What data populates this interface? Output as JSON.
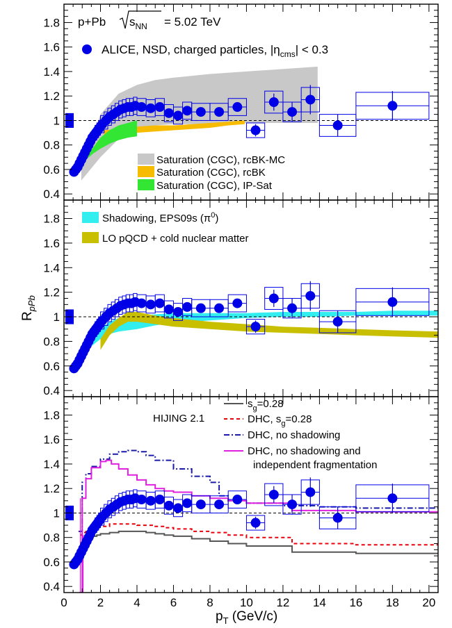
{
  "chart_data": {
    "type": "scatter",
    "title": "p+Pb √s_NN = 5.02 TeV",
    "title_parts": {
      "system": "p+Pb",
      "energy": "= 5.02 TeV",
      "sqrt_sub": "NN"
    },
    "xlabel": "p_T (GeV/c)",
    "xlabel_parts": {
      "main": "p",
      "sub": "T",
      "unit": " (GeV/c)"
    },
    "ylabel": "R_pPb",
    "ylabel_parts": {
      "main": "R",
      "sub": "pPb"
    },
    "xlim": [
      0,
      20.5
    ],
    "ylim": [
      0.35,
      1.95
    ],
    "xticks": [
      0,
      2,
      4,
      6,
      8,
      10,
      12,
      14,
      16,
      18,
      20
    ],
    "yticks": [
      0.4,
      0.6,
      0.8,
      1.0,
      1.2,
      1.4,
      1.6,
      1.8
    ],
    "ytick_labels": [
      "0.4",
      "0.6",
      "0.8",
      "1",
      "1.2",
      "1.4",
      "1.6",
      "1.8"
    ],
    "reference_line": 1.0,
    "normalization_uncertainty": 0.06,
    "data_label": "ALICE, NSD, charged particles, |η_cms| < 0.3",
    "data_label_parts": {
      "main": "ALICE, NSD, charged particles, |η",
      "sub": "cms",
      "tail": "| < 0.3"
    },
    "data": {
      "x": [
        0.55,
        0.65,
        0.75,
        0.85,
        0.95,
        1.05,
        1.15,
        1.25,
        1.35,
        1.45,
        1.55,
        1.65,
        1.75,
        1.85,
        1.95,
        2.1,
        2.3,
        2.5,
        2.7,
        2.9,
        3.1,
        3.3,
        3.5,
        3.7,
        3.9,
        4.25,
        4.75,
        5.25,
        5.75,
        6.25,
        6.75,
        7.5,
        8.5,
        9.5,
        10.5,
        11.5,
        12.5,
        13.5,
        15.0,
        18.0
      ],
      "y": [
        0.58,
        0.6,
        0.62,
        0.65,
        0.68,
        0.71,
        0.74,
        0.77,
        0.8,
        0.83,
        0.86,
        0.88,
        0.9,
        0.92,
        0.94,
        0.97,
        1.0,
        1.03,
        1.05,
        1.07,
        1.09,
        1.1,
        1.11,
        1.11,
        1.12,
        1.11,
        1.1,
        1.11,
        1.06,
        1.04,
        1.08,
        1.07,
        1.07,
        1.11,
        0.92,
        1.15,
        1.07,
        1.17,
        0.96,
        1.12
      ],
      "stat": [
        0.005,
        0.005,
        0.005,
        0.005,
        0.005,
        0.005,
        0.005,
        0.005,
        0.005,
        0.005,
        0.005,
        0.005,
        0.005,
        0.005,
        0.005,
        0.005,
        0.005,
        0.005,
        0.005,
        0.006,
        0.006,
        0.006,
        0.007,
        0.007,
        0.008,
        0.01,
        0.012,
        0.014,
        0.016,
        0.018,
        0.02,
        0.025,
        0.03,
        0.035,
        0.05,
        0.07,
        0.08,
        0.12,
        0.09,
        0.12
      ],
      "syst_y": [
        0.02,
        0.02,
        0.02,
        0.03,
        0.03,
        0.03,
        0.04,
        0.04,
        0.04,
        0.05,
        0.05,
        0.05,
        0.06,
        0.06,
        0.06,
        0.07,
        0.07,
        0.07,
        0.07,
        0.07,
        0.07,
        0.07,
        0.07,
        0.07,
        0.07,
        0.07,
        0.07,
        0.07,
        0.07,
        0.07,
        0.07,
        0.07,
        0.07,
        0.07,
        0.06,
        0.09,
        0.08,
        0.1,
        0.09,
        0.11
      ],
      "syst_w": [
        0.1,
        0.1,
        0.1,
        0.1,
        0.1,
        0.1,
        0.1,
        0.1,
        0.1,
        0.1,
        0.1,
        0.1,
        0.1,
        0.1,
        0.1,
        0.2,
        0.2,
        0.2,
        0.2,
        0.2,
        0.2,
        0.2,
        0.2,
        0.2,
        0.2,
        0.5,
        0.5,
        0.5,
        0.5,
        0.5,
        0.5,
        1.0,
        1.0,
        1.0,
        1.0,
        1.0,
        1.0,
        1.0,
        2.0,
        4.0
      ]
    },
    "panel1": {
      "bands": [
        {
          "name": "Saturation (CGC), rcBK-MC",
          "color": "#c8c8c8",
          "x": [
            0.95,
            2.0,
            3.0,
            4.0,
            5.0,
            6.0,
            8.0,
            10.0,
            12.0,
            13.9
          ],
          "lo": [
            0.51,
            0.7,
            0.85,
            0.94,
            0.96,
            0.97,
            0.97,
            0.98,
            0.98,
            0.98
          ],
          "hi": [
            0.6,
            1.05,
            1.22,
            1.29,
            1.33,
            1.35,
            1.38,
            1.4,
            1.42,
            1.44
          ]
        },
        {
          "name": "Saturation (CGC), rcBK",
          "color": "#f7bb00",
          "x": [
            2.2,
            3.0,
            4.0,
            5.0,
            6.0,
            7.0,
            8.0,
            9.0,
            9.9
          ],
          "lo": [
            0.88,
            0.89,
            0.9,
            0.91,
            0.92,
            0.93,
            0.94,
            0.96,
            0.97
          ],
          "hi": [
            0.92,
            0.93,
            0.95,
            0.96,
            0.96,
            0.97,
            0.98,
            0.99,
            1.0
          ]
        },
        {
          "name": "Saturation (CGC), IP-Sat",
          "color": "#33e633",
          "x": [
            1.2,
            1.6,
            2.0,
            2.5,
            3.0,
            3.5,
            4.0
          ],
          "lo": [
            0.68,
            0.73,
            0.77,
            0.81,
            0.84,
            0.86,
            0.87
          ],
          "hi": [
            0.7,
            0.78,
            0.86,
            0.92,
            0.96,
            0.98,
            1.0
          ]
        }
      ]
    },
    "panel2": {
      "bands": [
        {
          "name": "Shadowing, EPS09s (π⁰)",
          "name_parts": {
            "main": "Shadowing, EPS09s (π",
            "sup": "0",
            "tail": ")"
          },
          "color": "#33eeee",
          "x": [
            1.0,
            1.5,
            2.0,
            2.5,
            3.0,
            3.5,
            4.0,
            5.0,
            6.0,
            8.0,
            10.0,
            12.0,
            14.0,
            16.0,
            18.0,
            20.5
          ],
          "lo": [
            0.66,
            0.76,
            0.82,
            0.86,
            0.88,
            0.89,
            0.9,
            0.93,
            0.95,
            0.97,
            0.99,
            1.0,
            1.0,
            1.01,
            1.01,
            1.01
          ],
          "hi": [
            0.72,
            0.82,
            0.9,
            0.96,
            0.99,
            1.0,
            1.01,
            1.02,
            1.03,
            1.03,
            1.03,
            1.04,
            1.04,
            1.04,
            1.05,
            1.05
          ]
        },
        {
          "name": "LO pQCD + cold nuclear matter",
          "color": "#c8bf00",
          "x": [
            2.0,
            2.5,
            3.0,
            3.5,
            4.0,
            5.0,
            6.0,
            8.0,
            10.0,
            12.0,
            14.0,
            16.0,
            18.0,
            20.5
          ],
          "lo": [
            0.73,
            0.85,
            0.92,
            0.96,
            0.96,
            0.94,
            0.92,
            0.9,
            0.88,
            0.87,
            0.86,
            0.85,
            0.84,
            0.83
          ],
          "hi": [
            0.82,
            0.93,
            0.99,
            1.04,
            1.04,
            1.01,
            0.99,
            0.96,
            0.94,
            0.92,
            0.91,
            0.9,
            0.89,
            0.88
          ]
        }
      ]
    },
    "panel3": {
      "label": "HIJING 2.1",
      "lines": [
        {
          "name": "s_g=0.28",
          "name_parts": {
            "main": "s",
            "sub": "g",
            "tail": "=0.28"
          },
          "color": "#555555",
          "dash": "",
          "x": [
            0.9,
            1.0,
            1.2,
            1.4,
            1.6,
            1.8,
            2.0,
            2.5,
            3.0,
            3.5,
            4.0,
            4.5,
            5.0,
            5.5,
            6.0,
            7.0,
            8.0,
            9.0,
            10.0,
            12.5,
            16.0,
            20.5
          ],
          "y": [
            0.75,
            0.77,
            0.79,
            0.8,
            0.81,
            0.82,
            0.83,
            0.84,
            0.85,
            0.85,
            0.85,
            0.84,
            0.83,
            0.82,
            0.81,
            0.79,
            0.77,
            0.75,
            0.73,
            0.68,
            0.67,
            0.67
          ]
        },
        {
          "name": "DHC, s_g=0.28",
          "name_parts": {
            "main": "DHC, s",
            "sub": "g",
            "tail": "=0.28"
          },
          "color": "#e8000b",
          "dash": "5,4",
          "x": [
            0.9,
            1.0,
            1.2,
            1.4,
            1.6,
            1.8,
            2.0,
            2.5,
            3.0,
            3.5,
            4.0,
            4.5,
            5.0,
            5.5,
            6.0,
            7.0,
            8.0,
            9.0,
            10.0,
            12.5,
            16.0,
            20.5
          ],
          "y": [
            0.82,
            0.84,
            0.86,
            0.87,
            0.88,
            0.89,
            0.89,
            0.91,
            0.91,
            0.91,
            0.9,
            0.9,
            0.89,
            0.88,
            0.87,
            0.85,
            0.84,
            0.82,
            0.8,
            0.75,
            0.74,
            0.74
          ]
        },
        {
          "name": "DHC, no shadowing",
          "color": "#1a1aa8",
          "dash": "8,3,2,3",
          "x": [
            0.8,
            1.0,
            1.2,
            1.5,
            2.0,
            2.5,
            3.0,
            3.5,
            4.0,
            4.5,
            5.0,
            6.0,
            7.0,
            8.0,
            8.5,
            9.0,
            10.0,
            12.0,
            14.0,
            16.0,
            20.5
          ],
          "y": [
            0.85,
            1.25,
            1.32,
            1.38,
            1.44,
            1.48,
            1.5,
            1.51,
            1.5,
            1.47,
            1.43,
            1.36,
            1.3,
            1.25,
            1.14,
            1.1,
            1.08,
            1.06,
            1.05,
            1.04,
            1.04
          ]
        },
        {
          "name": "DHC, no shadowing and independent fragmentation",
          "name_lines": [
            "DHC, no shadowing and",
            "independent fragmentation"
          ],
          "color": "#e020e0",
          "dash": "",
          "x": [
            0.85,
            1.0,
            1.2,
            1.5,
            2.0,
            2.3,
            2.6,
            3.0,
            3.5,
            4.0,
            4.5,
            5.0,
            5.5,
            6.0,
            7.0,
            8.0,
            9.0,
            10.0,
            12.5,
            16.0,
            20.5
          ],
          "y": [
            0.35,
            1.12,
            1.28,
            1.37,
            1.42,
            1.43,
            1.4,
            1.36,
            1.31,
            1.27,
            1.23,
            1.2,
            1.18,
            1.17,
            1.14,
            1.12,
            1.1,
            1.08,
            1.02,
            1.01,
            1.01
          ]
        }
      ]
    }
  }
}
